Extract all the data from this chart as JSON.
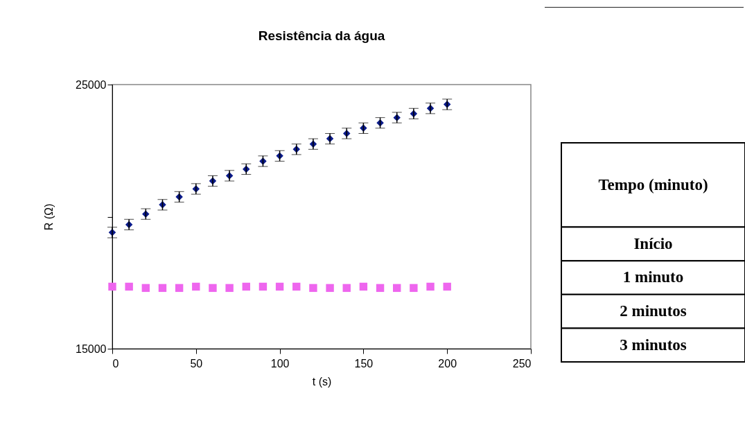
{
  "chart_data": [
    {
      "type": "scatter",
      "title": "Resistência da água",
      "xlabel": "t (s)",
      "ylabel": "R (Ω)",
      "x": [
        0,
        10,
        20,
        30,
        40,
        50,
        60,
        70,
        80,
        90,
        100,
        110,
        120,
        130,
        140,
        150,
        160,
        170,
        180,
        190,
        200
      ],
      "series": [
        {
          "color": "#0a1a8a",
          "marker": "diamond",
          "values": [
            19400,
            19700,
            20100,
            20450,
            20750,
            21050,
            21350,
            21550,
            21800,
            22100,
            22300,
            22550,
            22750,
            22950,
            23150,
            23350,
            23550,
            23750,
            23900,
            24100,
            24250
          ],
          "errors": [
            200,
            200,
            200,
            200,
            200,
            200,
            200,
            200,
            200,
            200,
            200,
            200,
            200,
            200,
            200,
            200,
            200,
            200,
            200,
            200,
            200
          ]
        },
        {
          "color": "#ee66ee",
          "marker": "square",
          "values": [
            17350,
            17350,
            17300,
            17300,
            17300,
            17350,
            17300,
            17300,
            17350,
            17350,
            17350,
            17350,
            17300,
            17300,
            17300,
            17350,
            17300,
            17300,
            17300,
            17350,
            17350
          ]
        }
      ],
      "xlim": [
        0,
        250
      ],
      "xticks": [
        0,
        50,
        100,
        150,
        200,
        250
      ],
      "ylim": [
        15000,
        25000
      ],
      "yticks": [
        15000,
        {
          "value": 20000,
          "label": null
        },
        25000
      ],
      "grid": false
    },
    {
      "type": "other",
      "annotations": [
        "Tempo (minuto)",
        "Início",
        "1 minuto",
        "2 minutos",
        "3 minutos"
      ]
    }
  ]
}
